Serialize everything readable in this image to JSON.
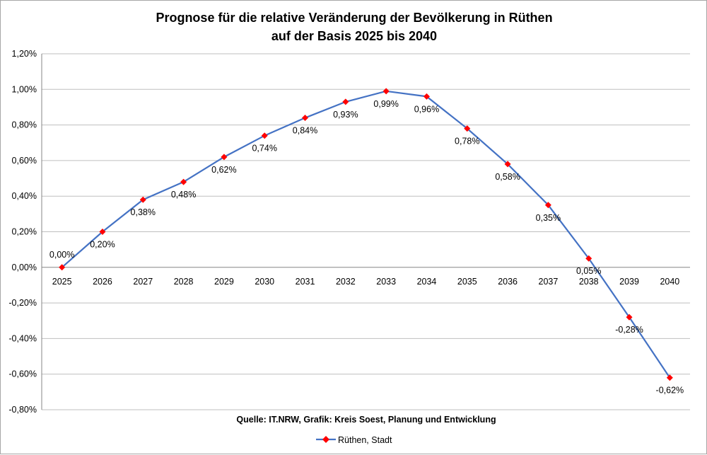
{
  "chart_data": {
    "type": "line",
    "title": [
      "Prognose für die relative Veränderung der Bevölkerung in Rüthen",
      "auf der Basis 2025 bis 2040"
    ],
    "categories": [
      "2025",
      "2026",
      "2027",
      "2028",
      "2029",
      "2030",
      "2031",
      "2032",
      "2033",
      "2034",
      "2035",
      "2036",
      "2037",
      "2038",
      "2039",
      "2040"
    ],
    "series": [
      {
        "name": "Rüthen, Stadt",
        "values": [
          0.0,
          0.2,
          0.38,
          0.48,
          0.62,
          0.74,
          0.84,
          0.93,
          0.99,
          0.96,
          0.78,
          0.58,
          0.35,
          0.05,
          -0.28,
          -0.62
        ],
        "labels": [
          "0,00%",
          "0,20%",
          "0,38%",
          "0,48%",
          "0,62%",
          "0,74%",
          "0,84%",
          "0,93%",
          "0,99%",
          "0,96%",
          "0,78%",
          "0,58%",
          "0,35%",
          "0,05%",
          "-0,28%",
          "-0,62%"
        ],
        "line_color": "#4472c4",
        "marker_color": "#ff0000",
        "marker": "diamond"
      }
    ],
    "ylim": [
      -0.8,
      1.2
    ],
    "yticks": [
      1.2,
      1.0,
      0.8,
      0.6,
      0.4,
      0.2,
      0.0,
      -0.2,
      -0.4,
      -0.6,
      -0.8
    ],
    "ytick_labels": [
      "1,20%",
      "1,00%",
      "0,80%",
      "0,60%",
      "0,40%",
      "0,20%",
      "0,00%",
      "-0,20%",
      "-0,40%",
      "-0,60%",
      "-0,80%"
    ],
    "grid": true,
    "legend": "bottom",
    "source": "Quelle: IT.NRW, Grafik: Kreis Soest, Planung und Entwicklung"
  }
}
